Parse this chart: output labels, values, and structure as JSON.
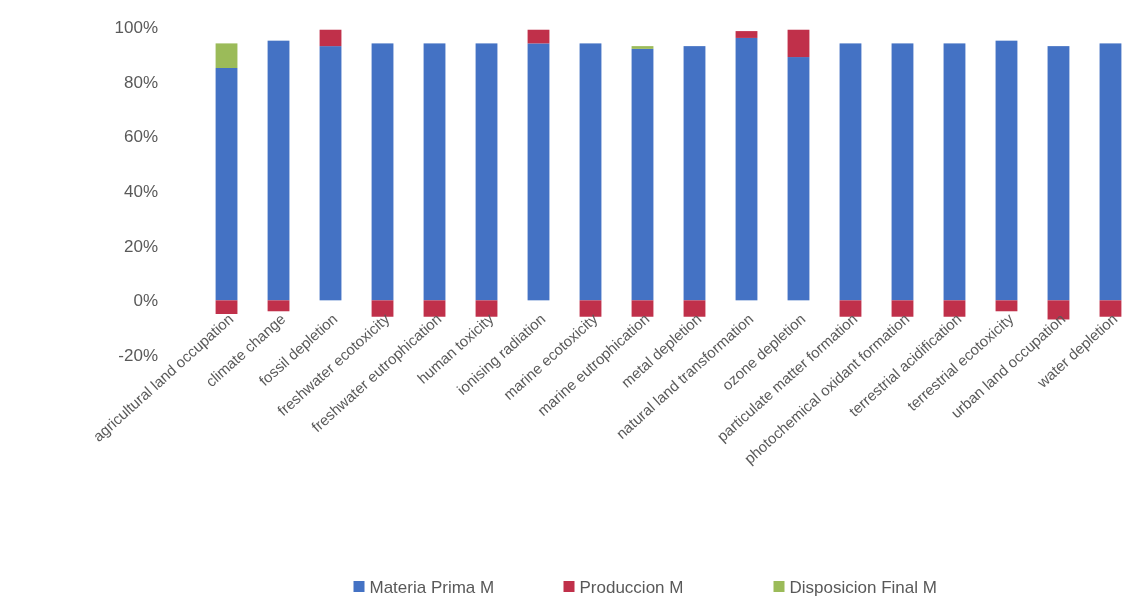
{
  "chart_data": {
    "type": "bar",
    "stacked": true,
    "categories": [
      "agricultural land occupation",
      "climate change",
      "fossil depletion",
      "freshwater ecotoxicity",
      "freshwater eutrophication",
      "human toxicity",
      "ionising radiation",
      "marine ecotoxicity",
      "marine eutrophication",
      "metal depletion",
      "natural land transformation",
      "ozone depletion",
      "particulate matter formation",
      "photochemical oxidant formation",
      "terrestrial acidification",
      "terrestrial ecotoxicity",
      "urban land occupation",
      "water depletion"
    ],
    "series": [
      {
        "name": "Materia Prima M",
        "color": "#4472c4",
        "values": [
          85,
          95,
          93,
          94,
          94,
          94,
          94,
          94,
          92,
          93,
          96,
          89,
          94,
          94,
          94,
          95,
          93,
          94
        ]
      },
      {
        "name": "Produccion M",
        "color": "#c0304a",
        "values": [
          -5,
          -4,
          6,
          -6,
          -6,
          -6,
          5,
          -6,
          -6,
          -6,
          2.5,
          10,
          -6,
          -6,
          -6,
          -4,
          -7,
          -6
        ]
      },
      {
        "name": "Disposicion Final M",
        "color": "#9bbb59",
        "values": [
          9,
          0,
          0,
          0,
          0,
          0,
          0,
          0,
          1,
          0,
          0,
          0,
          0,
          0,
          0,
          0,
          0,
          0
        ]
      }
    ],
    "ylim": [
      -20,
      100
    ],
    "yticks": [
      {
        "value": -20,
        "label": "-20%"
      },
      {
        "value": 0,
        "label": "0%"
      },
      {
        "value": 20,
        "label": "20%"
      },
      {
        "value": 40,
        "label": "40%"
      },
      {
        "value": 60,
        "label": "60%"
      },
      {
        "value": 80,
        "label": "80%"
      },
      {
        "value": 100,
        "label": "100%"
      }
    ],
    "grid": false,
    "legend": "bottom"
  }
}
